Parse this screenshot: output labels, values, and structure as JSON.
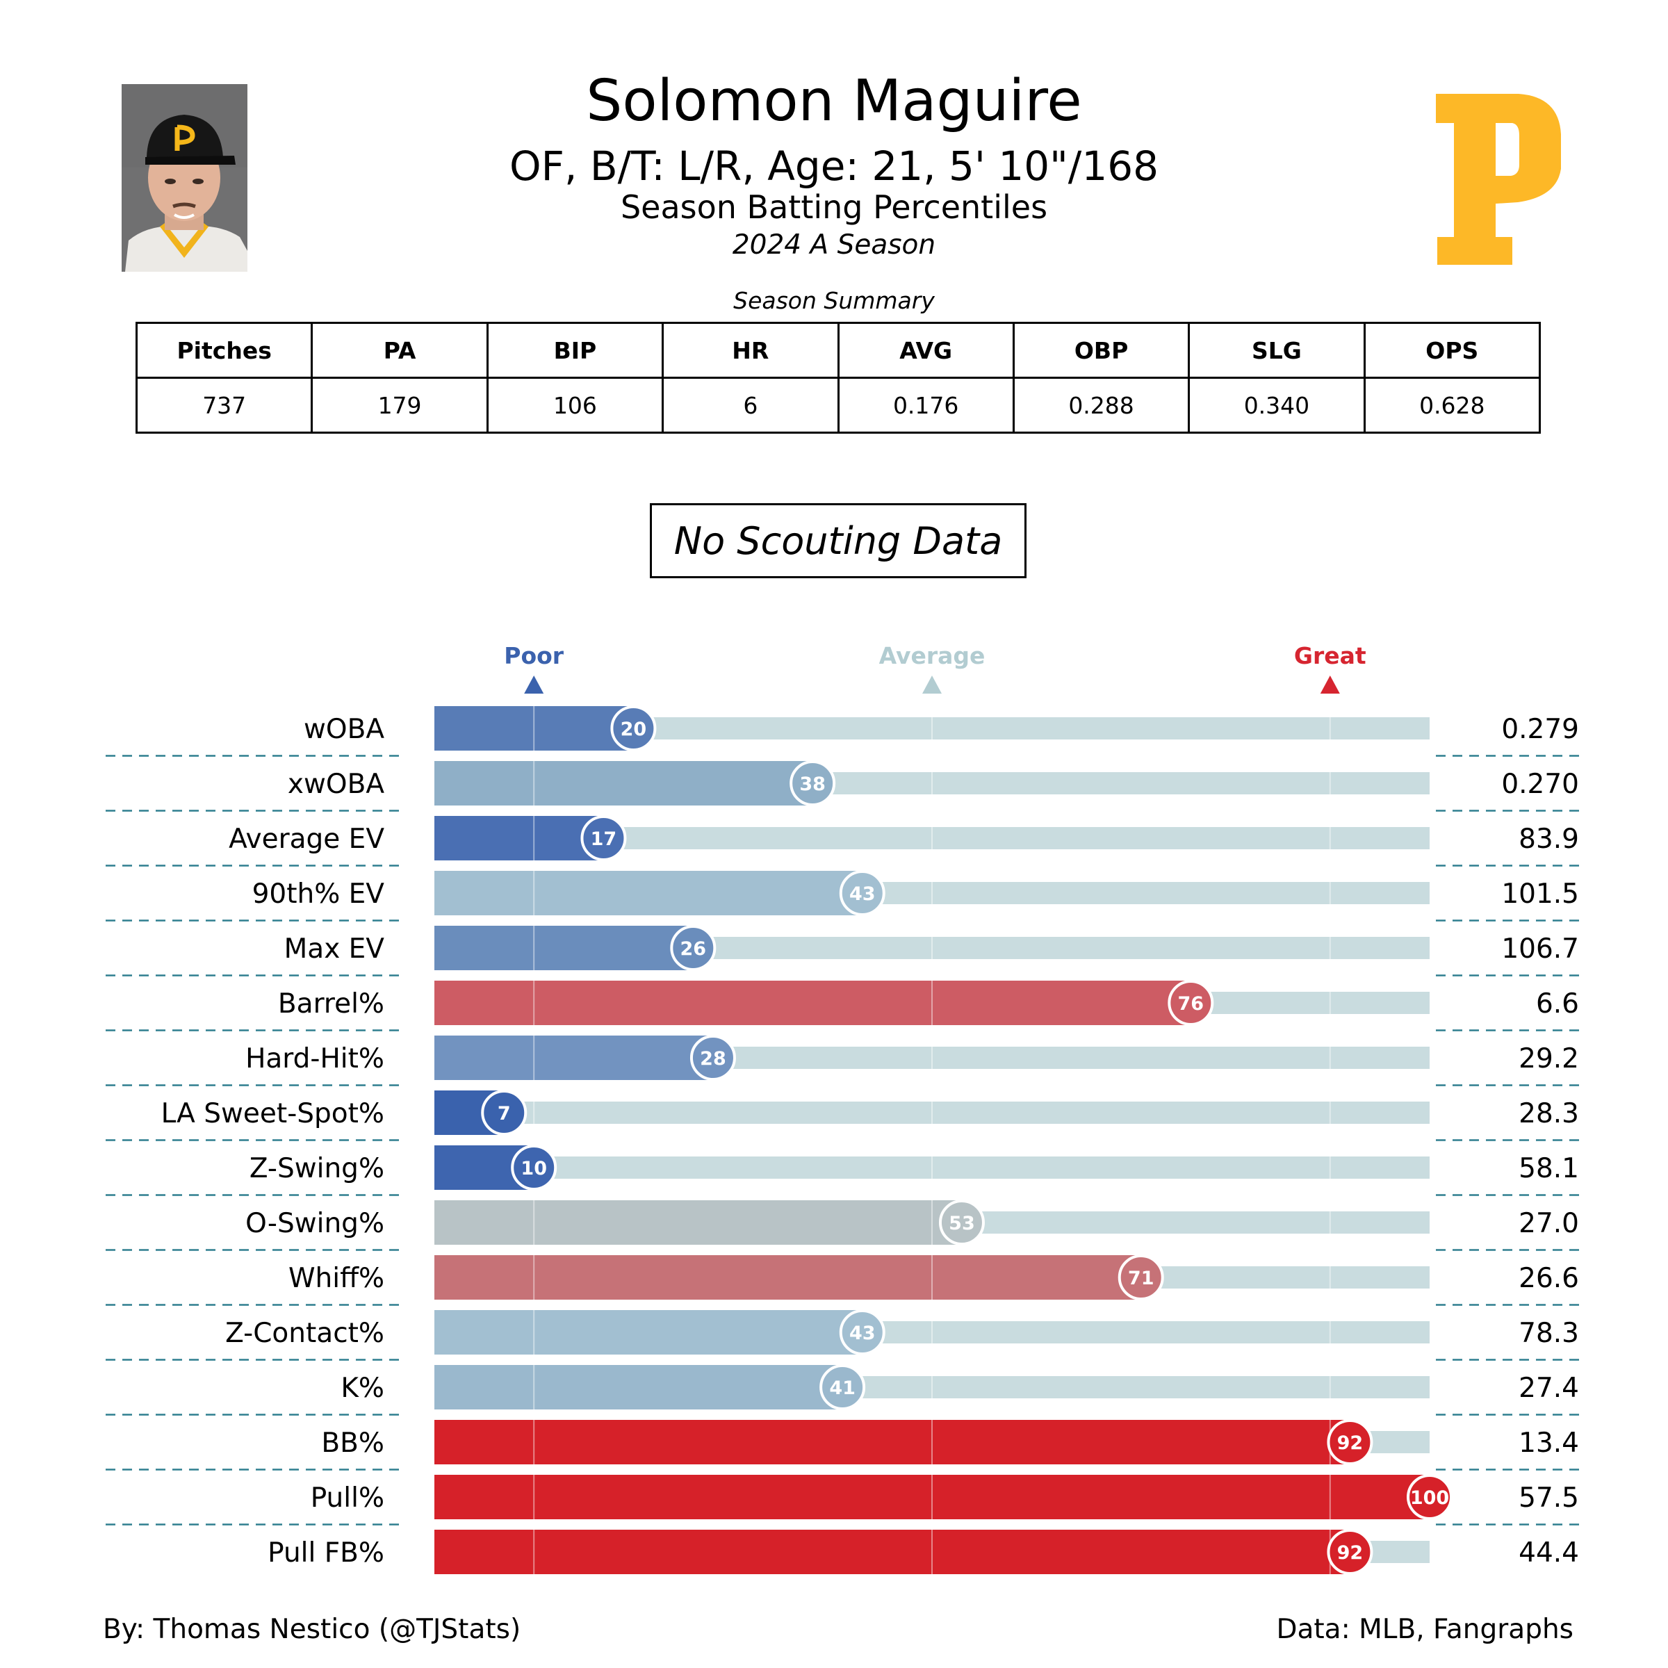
{
  "header": {
    "player_name": "Solomon Maguire",
    "bio_line": "OF, B/T: L/R, Age: 21, 5' 10\"/168",
    "report_title": "Season Batting Percentiles",
    "season_label": "2024 A Season",
    "summary_title": "Season Summary"
  },
  "summary_table": {
    "headers": [
      "Pitches",
      "PA",
      "BIP",
      "HR",
      "AVG",
      "OBP",
      "SLG",
      "OPS"
    ],
    "values": [
      "737",
      "179",
      "106",
      "6",
      "0.176",
      "0.288",
      "0.340",
      "0.628"
    ]
  },
  "scouting_note": "No Scouting Data",
  "chart_data": {
    "type": "bar",
    "orientation": "horizontal",
    "xlim": [
      0,
      100
    ],
    "scale_labels": [
      {
        "label": "Poor",
        "value": 10,
        "color": "#3b62ad"
      },
      {
        "label": "Average",
        "value": 50,
        "color": "#b2ccd1"
      },
      {
        "label": "Great",
        "value": 90,
        "color": "#d62530"
      }
    ],
    "categories": [
      "wOBA",
      "xwOBA",
      "Average EV",
      "90th% EV",
      "Max EV",
      "Barrel%",
      "Hard-Hit%",
      "LA Sweet-Spot%",
      "Z-Swing%",
      "O-Swing%",
      "Whiff%",
      "Z-Contact%",
      "K%",
      "BB%",
      "Pull%",
      "Pull FB%"
    ],
    "percentiles": [
      20,
      38,
      17,
      43,
      26,
      76,
      28,
      7,
      10,
      53,
      71,
      43,
      41,
      92,
      100,
      92
    ],
    "stat_values": [
      "0.279",
      "0.270",
      "83.9",
      "101.5",
      "106.7",
      "6.6",
      "29.2",
      "28.3",
      "58.1",
      "27.0",
      "26.6",
      "78.3",
      "27.4",
      "13.4",
      "57.5",
      "44.4"
    ],
    "bar_colors": [
      "#587cb6",
      "#8fafc7",
      "#4a6fb3",
      "#a2bfd1",
      "#6a8dbc",
      "#cd5c64",
      "#7293c0",
      "#3a62ad",
      "#3e65af",
      "#b8c3c6",
      "#c67277",
      "#a2bfd1",
      "#9ab8cd",
      "#d62129",
      "#d62129",
      "#d62129"
    ],
    "track_color": "#c9dcdf"
  },
  "footer": {
    "credit": "By: Thomas Nestico (@TJStats)",
    "source": "Data: MLB, Fangraphs"
  }
}
